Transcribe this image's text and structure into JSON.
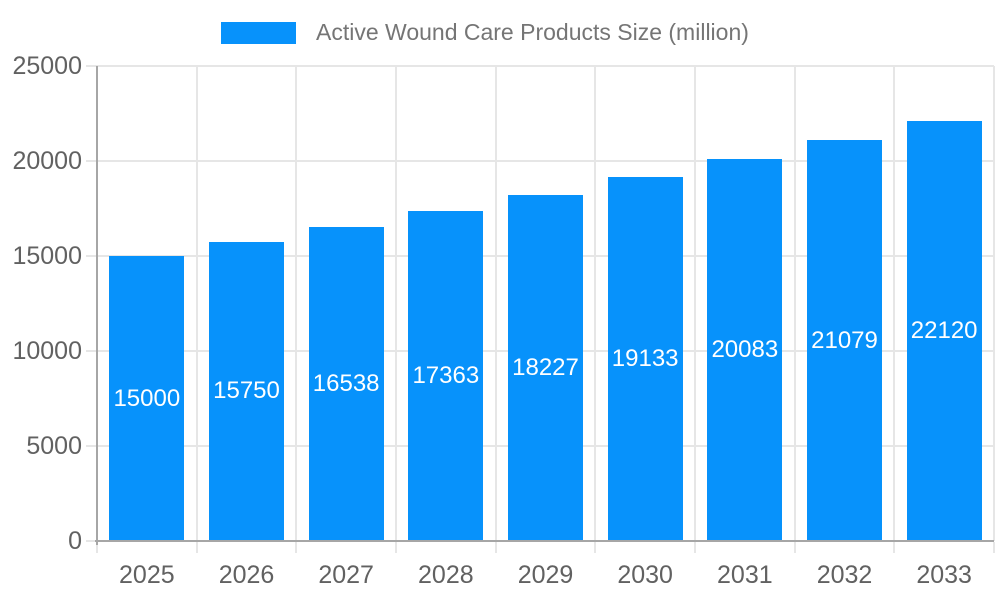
{
  "chart_data": {
    "type": "bar",
    "series_name": "Active Wound Care Products Size (million)",
    "categories": [
      "2025",
      "2026",
      "2027",
      "2028",
      "2029",
      "2030",
      "2031",
      "2032",
      "2033"
    ],
    "values": [
      15000,
      15750,
      16538,
      17363,
      18227,
      19133,
      20083,
      21079,
      22120
    ],
    "data_labels": [
      "15000",
      "15750",
      "16538",
      "17363",
      "18227",
      "19133",
      "20083",
      "21079",
      "22120"
    ],
    "ylim": [
      0,
      25000
    ],
    "y_ticks": [
      0,
      5000,
      10000,
      15000,
      20000,
      25000
    ],
    "grid": true,
    "legend_position": "top-center",
    "value_labels_position": "inside-center",
    "colors": {
      "bar": "#0792fb",
      "bar_label": "#ffffff",
      "axis_line": "#a6a6a6",
      "grid_line": "#e6e6e6",
      "tick_label": "#616161",
      "legend_text": "#757575",
      "background": "#ffffff"
    }
  }
}
